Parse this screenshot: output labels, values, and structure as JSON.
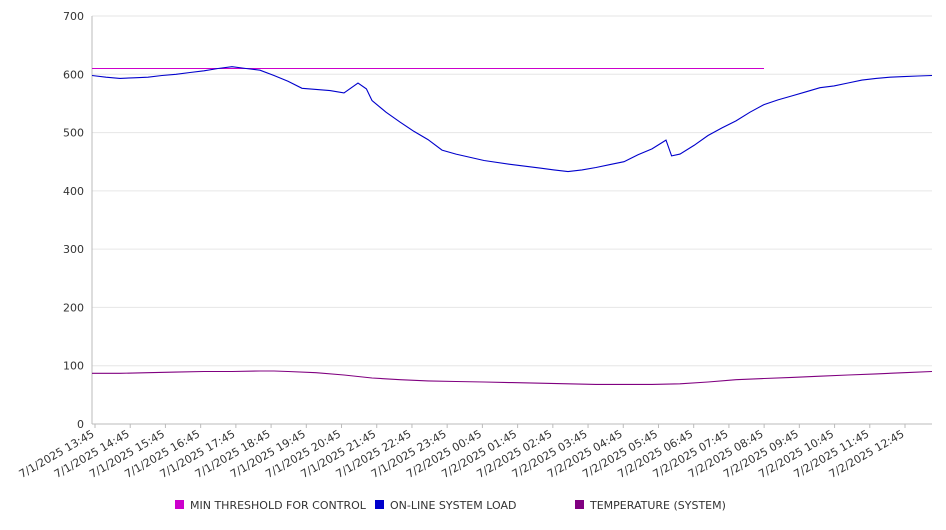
{
  "chart_data": {
    "type": "line",
    "x_labels": [
      "7/1/2025 13:45",
      "7/1/2025 14:45",
      "7/1/2025 15:45",
      "7/1/2025 16:45",
      "7/1/2025 17:45",
      "7/1/2025 18:45",
      "7/1/2025 19:45",
      "7/1/2025 20:45",
      "7/1/2025 21:45",
      "7/1/2025 22:45",
      "7/1/2025 23:45",
      "7/2/2025 00:45",
      "7/2/2025 01:45",
      "7/2/2025 02:45",
      "7/2/2025 03:45",
      "7/2/2025 04:45",
      "7/2/2025 05:45",
      "7/2/2025 06:45",
      "7/2/2025 07:45",
      "7/2/2025 08:45",
      "7/2/2025 09:45",
      "7/2/2025 10:45",
      "7/2/2025 11:45",
      "7/2/2025 12:45"
    ],
    "ylim": [
      0,
      700
    ],
    "y_ticks": [
      "0",
      "100",
      "200",
      "300",
      "400",
      "500",
      "600",
      "700"
    ],
    "grid": true,
    "legend_position": "bottom",
    "series": [
      {
        "name": "MIN THRESHOLD FOR CONTROL",
        "color": "#cc00cc",
        "points": [
          [
            0,
            610
          ],
          [
            24,
            610
          ]
        ]
      },
      {
        "name": "ON-LINE SYSTEM LOAD",
        "color": "#0000cc",
        "points": [
          [
            0,
            598
          ],
          [
            0.5,
            595
          ],
          [
            1,
            593
          ],
          [
            1.5,
            594
          ],
          [
            2,
            595
          ],
          [
            2.5,
            598
          ],
          [
            3,
            600
          ],
          [
            3.5,
            603
          ],
          [
            4,
            606
          ],
          [
            4.5,
            610
          ],
          [
            5,
            613
          ],
          [
            5.5,
            610
          ],
          [
            6,
            607
          ],
          [
            6.5,
            598
          ],
          [
            7,
            588
          ],
          [
            7.5,
            576
          ],
          [
            8,
            574
          ],
          [
            8.5,
            572
          ],
          [
            9,
            568
          ],
          [
            9.5,
            585
          ],
          [
            9.8,
            575
          ],
          [
            10,
            555
          ],
          [
            10.5,
            535
          ],
          [
            11,
            518
          ],
          [
            11.5,
            502
          ],
          [
            12,
            488
          ],
          [
            12.5,
            470
          ],
          [
            13,
            463
          ],
          [
            14,
            452
          ],
          [
            15,
            445
          ],
          [
            16,
            439
          ],
          [
            16.5,
            436
          ],
          [
            17,
            433
          ],
          [
            17.5,
            436
          ],
          [
            18,
            440
          ],
          [
            18.5,
            445
          ],
          [
            19,
            450
          ],
          [
            19.5,
            462
          ],
          [
            20,
            472
          ],
          [
            20.5,
            487
          ],
          [
            20.7,
            460
          ],
          [
            21,
            463
          ],
          [
            21.5,
            478
          ],
          [
            22,
            495
          ],
          [
            22.5,
            508
          ],
          [
            23,
            520
          ],
          [
            23.5,
            535
          ],
          [
            24,
            548
          ],
          [
            24.5,
            556
          ],
          [
            25,
            563
          ],
          [
            25.5,
            570
          ],
          [
            26,
            577
          ],
          [
            26.5,
            580
          ],
          [
            27,
            585
          ],
          [
            27.5,
            590
          ],
          [
            28,
            593
          ],
          [
            28.5,
            595
          ],
          [
            29,
            596
          ],
          [
            29.5,
            597
          ],
          [
            30,
            598
          ]
        ]
      },
      {
        "name": "TEMPERATURE (SYSTEM)",
        "color": "#800080",
        "points": [
          [
            0,
            87
          ],
          [
            1,
            87
          ],
          [
            2,
            88
          ],
          [
            3,
            89
          ],
          [
            4,
            90
          ],
          [
            5,
            90
          ],
          [
            6,
            91
          ],
          [
            6.5,
            91
          ],
          [
            7,
            90
          ],
          [
            8,
            88
          ],
          [
            9,
            84
          ],
          [
            10,
            79
          ],
          [
            11,
            76
          ],
          [
            12,
            74
          ],
          [
            13,
            73
          ],
          [
            14,
            72
          ],
          [
            15,
            71
          ],
          [
            16,
            70
          ],
          [
            17,
            69
          ],
          [
            18,
            68
          ],
          [
            19,
            68
          ],
          [
            20,
            68
          ],
          [
            21,
            69
          ],
          [
            22,
            72
          ],
          [
            23,
            76
          ],
          [
            24,
            78
          ],
          [
            25,
            80
          ],
          [
            26,
            82
          ],
          [
            27,
            84
          ],
          [
            28,
            86
          ],
          [
            29,
            88
          ],
          [
            30,
            90
          ]
        ]
      }
    ]
  }
}
